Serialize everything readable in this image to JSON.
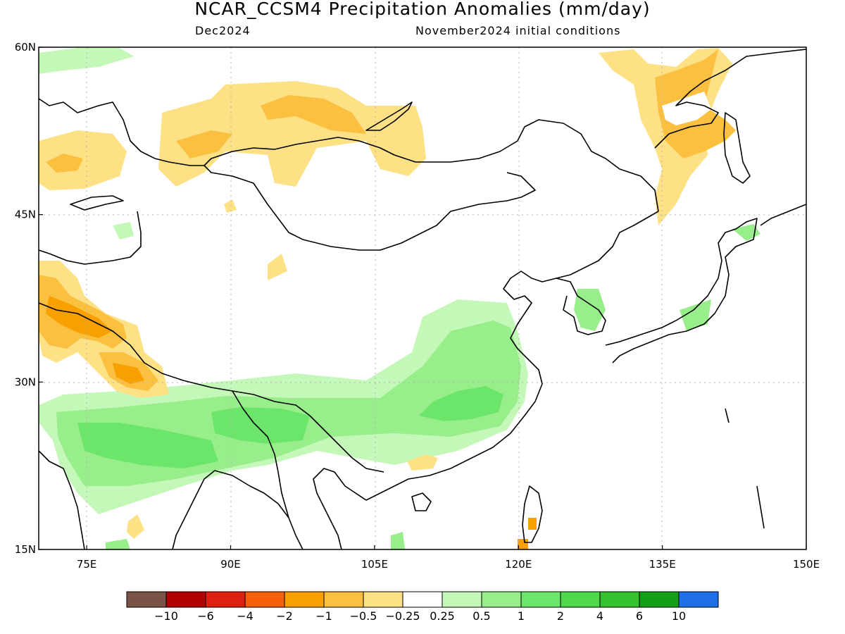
{
  "title": "NCAR_CCSM4 Precipitation Anomalies (mm/day)",
  "subtitle_left": "Dec2024",
  "subtitle_right": "November2024 initial conditions",
  "map": {
    "lon_range": [
      70,
      150
    ],
    "lat_range": [
      15,
      60
    ],
    "lon_ticks": [
      {
        "value": 75,
        "label": "75E"
      },
      {
        "value": 90,
        "label": "90E"
      },
      {
        "value": 105,
        "label": "105E"
      },
      {
        "value": 120,
        "label": "120E"
      },
      {
        "value": 135,
        "label": "135E"
      },
      {
        "value": 150,
        "label": "150E"
      }
    ],
    "lat_ticks": [
      {
        "value": 60,
        "label": "60N"
      },
      {
        "value": 45,
        "label": "45N"
      },
      {
        "value": 30,
        "label": "30N"
      },
      {
        "value": 15,
        "label": "15N"
      }
    ]
  },
  "colorbar": {
    "colors": [
      "#7b5246",
      "#b00000",
      "#dd2010",
      "#f56008",
      "#f8a000",
      "#fbc040",
      "#fde184",
      "#ffffff",
      "#c4f8b8",
      "#98ee8a",
      "#6ce66a",
      "#4ed84a",
      "#34c22e",
      "#14a014",
      "#1f6fe6"
    ],
    "labels": [
      "−10",
      "−6",
      "−4",
      "−2",
      "−1",
      "−0.5",
      "−0.25",
      "0.25",
      "0.5",
      "1",
      "2",
      "4",
      "6",
      "10"
    ]
  }
}
